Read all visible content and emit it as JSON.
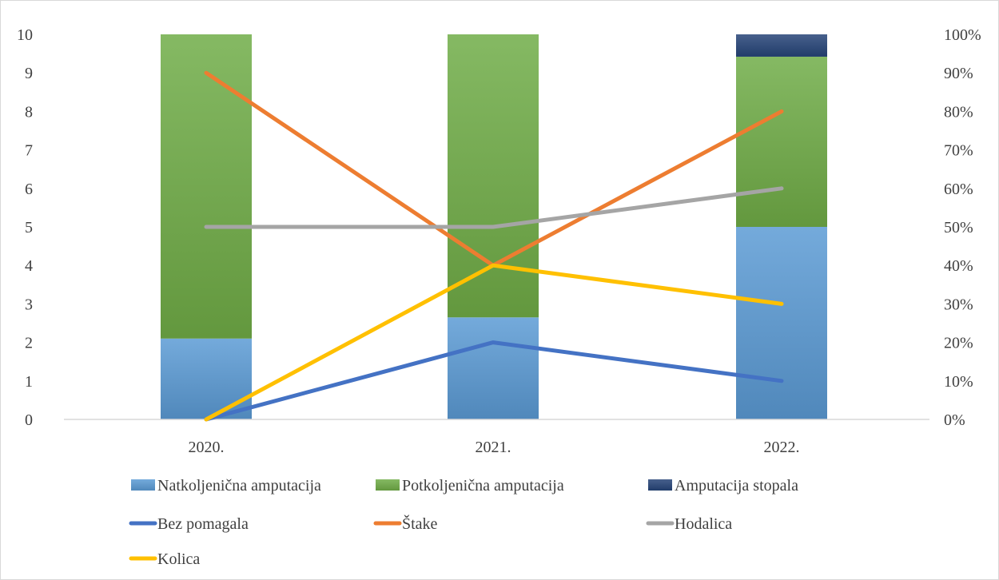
{
  "chart_data": {
    "type": "bar",
    "stacked": true,
    "categories": [
      "2020.",
      "2021.",
      "2022."
    ],
    "y_left": {
      "min": 0,
      "max": 10,
      "ticks": [
        "0",
        "1",
        "2",
        "3",
        "4",
        "5",
        "6",
        "7",
        "8",
        "9",
        "10"
      ]
    },
    "y_right": {
      "min": 0,
      "max": 100,
      "unit": "%",
      "ticks": [
        "0%",
        "10%",
        "20%",
        "30%",
        "40%",
        "50%",
        "60%",
        "70%",
        "80%",
        "90%",
        "100%"
      ]
    },
    "grid": false,
    "legend_position": "bottom",
    "bar_series": [
      {
        "name": "Natkoljenična amputacija",
        "values": [
          2.1,
          2.65,
          5.0
        ],
        "color": "#5b9bd5"
      },
      {
        "name": "Potkoljenična amputacija",
        "values": [
          7.9,
          7.35,
          4.42
        ],
        "color": "#70ad47"
      },
      {
        "name": "Amputacija stopala",
        "values": [
          0,
          0,
          0.58
        ],
        "color": "#264478"
      }
    ],
    "line_series": [
      {
        "name": "Bez pomagala",
        "values": [
          0,
          2,
          1
        ],
        "color": "#4472c4"
      },
      {
        "name": "Štake",
        "values": [
          9,
          4,
          8
        ],
        "color": "#ed7d31"
      },
      {
        "name": "Hodalica",
        "values": [
          5,
          5,
          6
        ],
        "color": "#a5a5a5"
      },
      {
        "name": "Kolica",
        "values": [
          0,
          4,
          3
        ],
        "color": "#ffc000"
      }
    ]
  }
}
